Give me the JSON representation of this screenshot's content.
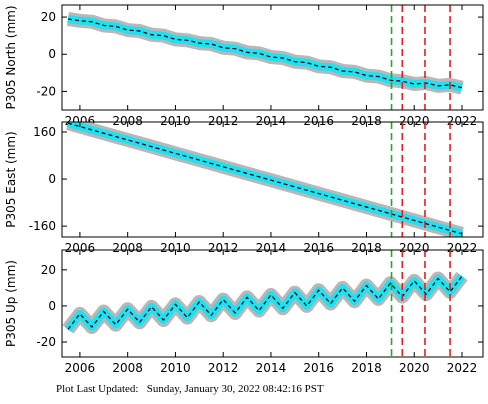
{
  "chart_data": [
    {
      "type": "line",
      "ylabel": "P305 North (mm)",
      "x": [
        2005.5,
        2006,
        2006.5,
        2007,
        2007.5,
        2008,
        2008.5,
        2009,
        2009.5,
        2010,
        2010.5,
        2011,
        2011.5,
        2012,
        2012.5,
        2013,
        2013.5,
        2014,
        2014.5,
        2015,
        2015.5,
        2016,
        2016.5,
        2017,
        2017.5,
        2018,
        2018.5,
        2019,
        2019.5,
        2020,
        2020.5,
        2021,
        2021.5,
        2022
      ],
      "values": [
        19,
        18,
        17.5,
        15.5,
        15,
        13,
        12.5,
        10.5,
        10,
        8,
        7.5,
        6,
        5.5,
        3.5,
        3,
        1,
        0.5,
        -1.5,
        -2,
        -4,
        -4.5,
        -6.5,
        -7,
        -9,
        -9.5,
        -11.5,
        -12,
        -14,
        -14.5,
        -16,
        -15.5,
        -17,
        -16.5,
        -18
      ],
      "color": "#22e0f0",
      "xlim": [
        2005.25,
        2022.88
      ],
      "ylim": [
        -30,
        26.5
      ],
      "xticks": [
        2006,
        2008,
        2010,
        2012,
        2014,
        2016,
        2018,
        2020,
        2022
      ],
      "yticks": [
        -20,
        0,
        20
      ],
      "vlines": [
        {
          "x": 2019.05,
          "color": "#22aa22"
        },
        {
          "x": 2019.5,
          "color": "#e02020"
        },
        {
          "x": 2020.45,
          "color": "#e02020"
        },
        {
          "x": 2021.5,
          "color": "#e02020"
        }
      ]
    },
    {
      "type": "line",
      "ylabel": "P305 East (mm)",
      "x": [
        2005.5,
        2006,
        2006.5,
        2007,
        2007.5,
        2008,
        2008.5,
        2009,
        2009.5,
        2010,
        2010.5,
        2011,
        2011.5,
        2012,
        2012.5,
        2013,
        2013.5,
        2014,
        2014.5,
        2015,
        2015.5,
        2016,
        2016.5,
        2017,
        2017.5,
        2018,
        2018.5,
        2019,
        2019.5,
        2020,
        2020.5,
        2021,
        2021.5,
        2022
      ],
      "values": [
        190,
        178.6,
        167.2,
        155.8,
        144.4,
        133,
        121.6,
        110.2,
        98.8,
        87.4,
        76,
        64.6,
        53.2,
        41.8,
        30.4,
        19,
        7.6,
        -3.8,
        -15.2,
        -26.6,
        -38,
        -49.4,
        -60.8,
        -72.2,
        -83.6,
        -95,
        -106.4,
        -117.8,
        -129.2,
        -140.6,
        -152,
        -163.4,
        -174.8,
        -186.2
      ],
      "color": "#22e0f0",
      "xlim": [
        2005.25,
        2022.88
      ],
      "ylim": [
        -197,
        194
      ],
      "xticks": [
        2006,
        2008,
        2010,
        2012,
        2014,
        2016,
        2018,
        2020,
        2022
      ],
      "yticks": [
        -160,
        0,
        160
      ],
      "vlines": [
        {
          "x": 2019.05,
          "color": "#22aa22"
        },
        {
          "x": 2019.5,
          "color": "#e02020"
        },
        {
          "x": 2020.45,
          "color": "#e02020"
        },
        {
          "x": 2021.5,
          "color": "#e02020"
        }
      ]
    },
    {
      "type": "line",
      "ylabel": "P305 Up (mm)",
      "x": [
        2005.5,
        2006,
        2006.5,
        2007,
        2007.5,
        2008,
        2008.5,
        2009,
        2009.5,
        2010,
        2010.5,
        2011,
        2011.5,
        2012,
        2012.5,
        2013,
        2013.5,
        2014,
        2014.5,
        2015,
        2015.5,
        2016,
        2016.5,
        2017,
        2017.5,
        2018,
        2018.5,
        2019,
        2019.5,
        2020,
        2020.5,
        2021,
        2021.5,
        2022
      ],
      "values": [
        -13,
        -4.4,
        -11.7,
        -3.1,
        -10.4,
        -1.8,
        -9.1,
        -0.5,
        -7.8,
        0.9,
        -6.5,
        2.2,
        -5.2,
        3.5,
        -3.9,
        4.8,
        -2.6,
        6.1,
        -1.3,
        7.4,
        0,
        8.7,
        1.3,
        10,
        2.6,
        11.3,
        3.9,
        12.6,
        5.2,
        13.9,
        6.5,
        15.2,
        7.8,
        16.5
      ],
      "color": "#22e0f0",
      "xlim": [
        2005.25,
        2022.88
      ],
      "ylim": [
        -28.3,
        31
      ],
      "xticks": [
        2006,
        2008,
        2010,
        2012,
        2014,
        2016,
        2018,
        2020,
        2022
      ],
      "yticks": [
        -20,
        0,
        20
      ],
      "vlines": [
        {
          "x": 2019.05,
          "color": "#22aa22"
        },
        {
          "x": 2019.5,
          "color": "#e02020"
        },
        {
          "x": 2020.45,
          "color": "#e02020"
        },
        {
          "x": 2021.5,
          "color": "#e02020"
        }
      ]
    }
  ],
  "footer": "Plot Last Updated:   Sunday, January 30, 2022 08:42:16 PST"
}
